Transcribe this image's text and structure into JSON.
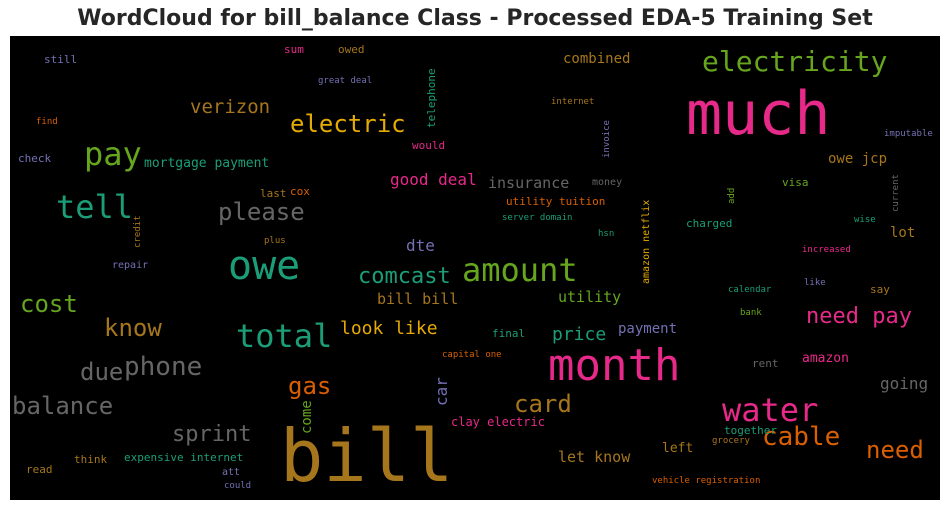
{
  "title": "WordCloud for bill_balance Class - Processed EDA-5 Training Set",
  "chart_data": {
    "type": "wordcloud",
    "background": "#000000",
    "words": [
      {
        "text": "bill",
        "color": "#a6761d",
        "size": 72
      },
      {
        "text": "much",
        "color": "#e7298a",
        "size": 60
      },
      {
        "text": "month",
        "color": "#e7298a",
        "size": 44
      },
      {
        "text": "owe",
        "color": "#1b9e77",
        "size": 40
      },
      {
        "text": "water",
        "color": "#e7298a",
        "size": 32
      },
      {
        "text": "amount",
        "color": "#66a61e",
        "size": 32
      },
      {
        "text": "total",
        "color": "#1b9e77",
        "size": 32
      },
      {
        "text": "tell",
        "color": "#1b9e77",
        "size": 32
      },
      {
        "text": "pay",
        "color": "#66a61e",
        "size": 32
      },
      {
        "text": "electricity",
        "color": "#66a61e",
        "size": 28
      },
      {
        "text": "phone",
        "color": "#666666",
        "size": 26
      },
      {
        "text": "cable",
        "color": "#d95f02",
        "size": 26
      },
      {
        "text": "cost",
        "color": "#66a61e",
        "size": 24
      },
      {
        "text": "electric",
        "color": "#e6ab02",
        "size": 24
      },
      {
        "text": "please",
        "color": "#666666",
        "size": 24
      },
      {
        "text": "balance",
        "color": "#666666",
        "size": 24
      },
      {
        "text": "need",
        "color": "#d95f02",
        "size": 24
      },
      {
        "text": "know",
        "color": "#a6761d",
        "size": 24
      },
      {
        "text": "due",
        "color": "#666666",
        "size": 24
      },
      {
        "text": "card",
        "color": "#a6761d",
        "size": 24
      },
      {
        "text": "gas",
        "color": "#d95f02",
        "size": 24
      },
      {
        "text": "sprint",
        "color": "#666666",
        "size": 22
      },
      {
        "text": "need pay",
        "color": "#e7298a",
        "size": 22
      },
      {
        "text": "comcast",
        "color": "#1b9e77",
        "size": 22
      },
      {
        "text": "verizon",
        "color": "#a6761d",
        "size": 19
      },
      {
        "text": "look like",
        "color": "#e6ab02",
        "size": 18
      },
      {
        "text": "price",
        "color": "#1b9e77",
        "size": 18
      },
      {
        "text": "going",
        "color": "#666666",
        "size": 16
      },
      {
        "text": "good deal",
        "color": "#e7298a",
        "size": 16
      },
      {
        "text": "dte",
        "color": "#7570b3",
        "size": 16
      },
      {
        "text": "insurance",
        "color": "#666666",
        "size": 15
      },
      {
        "text": "utility",
        "color": "#66a61e",
        "size": 15
      },
      {
        "text": "bill bill",
        "color": "#a6761d",
        "size": 15
      },
      {
        "text": "let know",
        "color": "#a6761d",
        "size": 15
      },
      {
        "text": "owe jcp",
        "color": "#a6761d",
        "size": 14
      },
      {
        "text": "combined",
        "color": "#a6761d",
        "size": 14
      },
      {
        "text": "payment",
        "color": "#7570b3",
        "size": 14
      },
      {
        "text": "lot",
        "color": "#a6761d",
        "size": 14
      },
      {
        "text": "amazon",
        "color": "#e7298a",
        "size": 13
      },
      {
        "text": "left",
        "color": "#a6761d",
        "size": 13
      },
      {
        "text": "mortgage payment",
        "color": "#1b9e77",
        "size": 13
      },
      {
        "text": "car",
        "color": "#7570b3",
        "size": 16,
        "rotate": true
      },
      {
        "text": "come",
        "color": "#66a61e",
        "size": 14,
        "rotate": true
      },
      {
        "text": "clay electric",
        "color": "#e7298a",
        "size": 12
      },
      {
        "text": "charged",
        "color": "#1b9e77",
        "size": 11
      },
      {
        "text": "final",
        "color": "#1b9e77",
        "size": 11
      },
      {
        "text": "together",
        "color": "#1b9e77",
        "size": 11
      },
      {
        "text": "expensive internet",
        "color": "#1b9e77",
        "size": 11
      },
      {
        "text": "utility tuition",
        "color": "#d95f02",
        "size": 11
      },
      {
        "text": "think",
        "color": "#a6761d",
        "size": 11
      },
      {
        "text": "read",
        "color": "#a6761d",
        "size": 11
      },
      {
        "text": "would",
        "color": "#e7298a",
        "size": 11
      },
      {
        "text": "sum",
        "color": "#e7298a",
        "size": 11
      },
      {
        "text": "owed",
        "color": "#a6761d",
        "size": 11
      },
      {
        "text": "still",
        "color": "#7570b3",
        "size": 11
      },
      {
        "text": "check",
        "color": "#7570b3",
        "size": 11
      },
      {
        "text": "visa",
        "color": "#66a61e",
        "size": 11
      },
      {
        "text": "say",
        "color": "#a6761d",
        "size": 11
      },
      {
        "text": "rent",
        "color": "#666666",
        "size": 11
      },
      {
        "text": "last",
        "color": "#a6761d",
        "size": 11
      },
      {
        "text": "cox",
        "color": "#d95f02",
        "size": 11
      },
      {
        "text": "money",
        "color": "#666666",
        "size": 10
      },
      {
        "text": "repair",
        "color": "#7570b3",
        "size": 10
      },
      {
        "text": "att",
        "color": "#7570b3",
        "size": 10
      },
      {
        "text": "hsn",
        "color": "#1b9e77",
        "size": 9
      },
      {
        "text": "find",
        "color": "#d95f02",
        "size": 9
      },
      {
        "text": "plus",
        "color": "#a6761d",
        "size": 9
      },
      {
        "text": "internet",
        "color": "#a6761d",
        "size": 9
      },
      {
        "text": "imputable",
        "color": "#7570b3",
        "size": 9
      },
      {
        "text": "increased",
        "color": "#e7298a",
        "size": 9
      },
      {
        "text": "like",
        "color": "#7570b3",
        "size": 9
      },
      {
        "text": "calendar",
        "color": "#1b9e77",
        "size": 9
      },
      {
        "text": "bank",
        "color": "#66a61e",
        "size": 9
      },
      {
        "text": "wise",
        "color": "#1b9e77",
        "size": 9
      },
      {
        "text": "great deal",
        "color": "#7570b3",
        "size": 9
      },
      {
        "text": "server domain",
        "color": "#1b9e77",
        "size": 9
      },
      {
        "text": "capital one",
        "color": "#d95f02",
        "size": 9
      },
      {
        "text": "grocery",
        "color": "#a6761d",
        "size": 9
      },
      {
        "text": "could",
        "color": "#7570b3",
        "size": 9
      },
      {
        "text": "vehicle registration",
        "color": "#d95f02",
        "size": 9
      },
      {
        "text": "telephone",
        "color": "#1b9e77",
        "size": 11,
        "rotate": true
      },
      {
        "text": "invoice",
        "color": "#7570b3",
        "size": 9,
        "rotate": true
      },
      {
        "text": "amazon netflix",
        "color": "#e6ab02",
        "size": 10,
        "rotate": true
      },
      {
        "text": "credit",
        "color": "#a6761d",
        "size": 9,
        "rotate": true
      },
      {
        "text": "current",
        "color": "#666666",
        "size": 9,
        "rotate": true
      },
      {
        "text": "add",
        "color": "#66a61e",
        "size": 9,
        "rotate": true
      }
    ]
  }
}
